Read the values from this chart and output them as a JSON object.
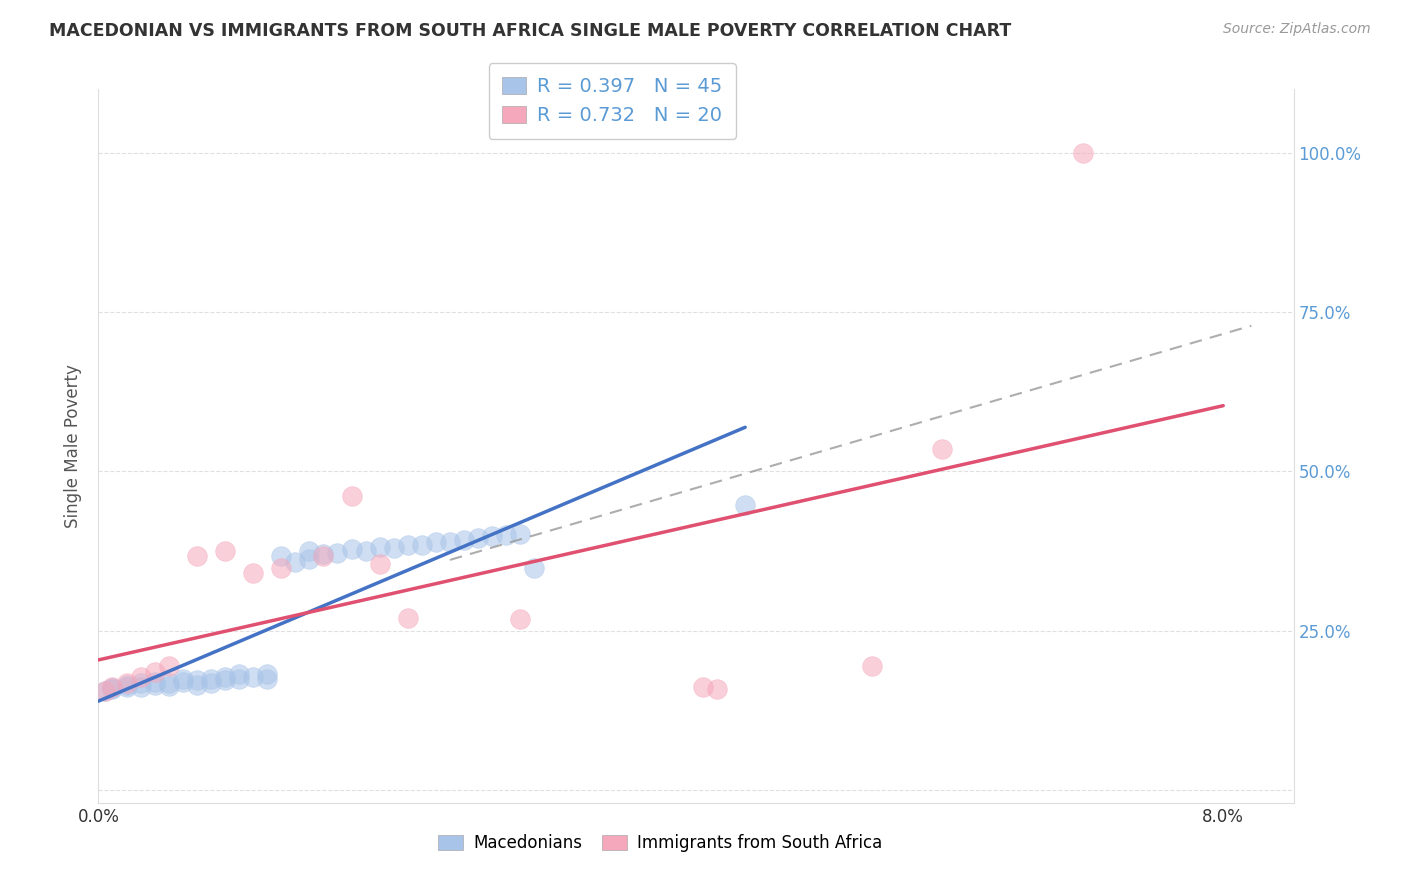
{
  "title": "MACEDONIAN VS IMMIGRANTS FROM SOUTH AFRICA SINGLE MALE POVERTY CORRELATION CHART",
  "source": "Source: ZipAtlas.com",
  "ylabel": "Single Male Poverty",
  "xlim": [
    0.0,
    0.085
  ],
  "ylim": [
    -0.02,
    1.1
  ],
  "macedonian_R": 0.397,
  "macedonian_N": 45,
  "southafrica_R": 0.732,
  "southafrica_N": 20,
  "macedonian_color": "#a8c4e8",
  "southafrica_color": "#f5a8bc",
  "macedonian_line_color": "#4472c4",
  "southafrica_line_color": "#e05070",
  "dash_line_color": "#999999",
  "background_color": "#ffffff",
  "grid_color": "#cccccc",
  "ytick_color": "#5b9bd5",
  "mac_line_x_end": 0.046,
  "sa_line_x_end": 0.08,
  "dash_line_x_start": 0.025,
  "dash_line_x_end": 0.082,
  "macedonian_points": [
    [
      0.0005,
      0.155
    ],
    [
      0.001,
      0.16
    ],
    [
      0.001,
      0.158
    ],
    [
      0.002,
      0.162
    ],
    [
      0.002,
      0.165
    ],
    [
      0.003,
      0.162
    ],
    [
      0.003,
      0.168
    ],
    [
      0.004,
      0.165
    ],
    [
      0.004,
      0.17
    ],
    [
      0.005,
      0.163
    ],
    [
      0.005,
      0.168
    ],
    [
      0.006,
      0.17
    ],
    [
      0.006,
      0.175
    ],
    [
      0.007,
      0.165
    ],
    [
      0.007,
      0.172
    ],
    [
      0.008,
      0.168
    ],
    [
      0.008,
      0.175
    ],
    [
      0.009,
      0.172
    ],
    [
      0.009,
      0.178
    ],
    [
      0.01,
      0.175
    ],
    [
      0.01,
      0.182
    ],
    [
      0.011,
      0.178
    ],
    [
      0.012,
      0.175
    ],
    [
      0.012,
      0.182
    ],
    [
      0.013,
      0.368
    ],
    [
      0.014,
      0.358
    ],
    [
      0.015,
      0.362
    ],
    [
      0.015,
      0.375
    ],
    [
      0.016,
      0.37
    ],
    [
      0.017,
      0.372
    ],
    [
      0.018,
      0.378
    ],
    [
      0.019,
      0.375
    ],
    [
      0.02,
      0.382
    ],
    [
      0.021,
      0.38
    ],
    [
      0.022,
      0.385
    ],
    [
      0.023,
      0.385
    ],
    [
      0.024,
      0.39
    ],
    [
      0.025,
      0.39
    ],
    [
      0.026,
      0.392
    ],
    [
      0.027,
      0.395
    ],
    [
      0.028,
      0.398
    ],
    [
      0.029,
      0.4
    ],
    [
      0.03,
      0.402
    ],
    [
      0.031,
      0.348
    ],
    [
      0.046,
      0.448
    ]
  ],
  "southafrica_points": [
    [
      0.0005,
      0.155
    ],
    [
      0.001,
      0.162
    ],
    [
      0.002,
      0.168
    ],
    [
      0.003,
      0.178
    ],
    [
      0.004,
      0.185
    ],
    [
      0.005,
      0.195
    ],
    [
      0.007,
      0.368
    ],
    [
      0.009,
      0.375
    ],
    [
      0.011,
      0.34
    ],
    [
      0.013,
      0.348
    ],
    [
      0.016,
      0.368
    ],
    [
      0.018,
      0.462
    ],
    [
      0.02,
      0.355
    ],
    [
      0.022,
      0.27
    ],
    [
      0.03,
      0.268
    ],
    [
      0.043,
      0.162
    ],
    [
      0.044,
      0.158
    ],
    [
      0.055,
      0.195
    ],
    [
      0.06,
      0.535
    ],
    [
      0.07,
      1.0
    ]
  ],
  "mac_line_params": [
    0.155,
    7.0
  ],
  "sa_line_params": [
    0.1,
    9.5
  ],
  "dash_line_params": [
    0.17,
    5.5
  ]
}
